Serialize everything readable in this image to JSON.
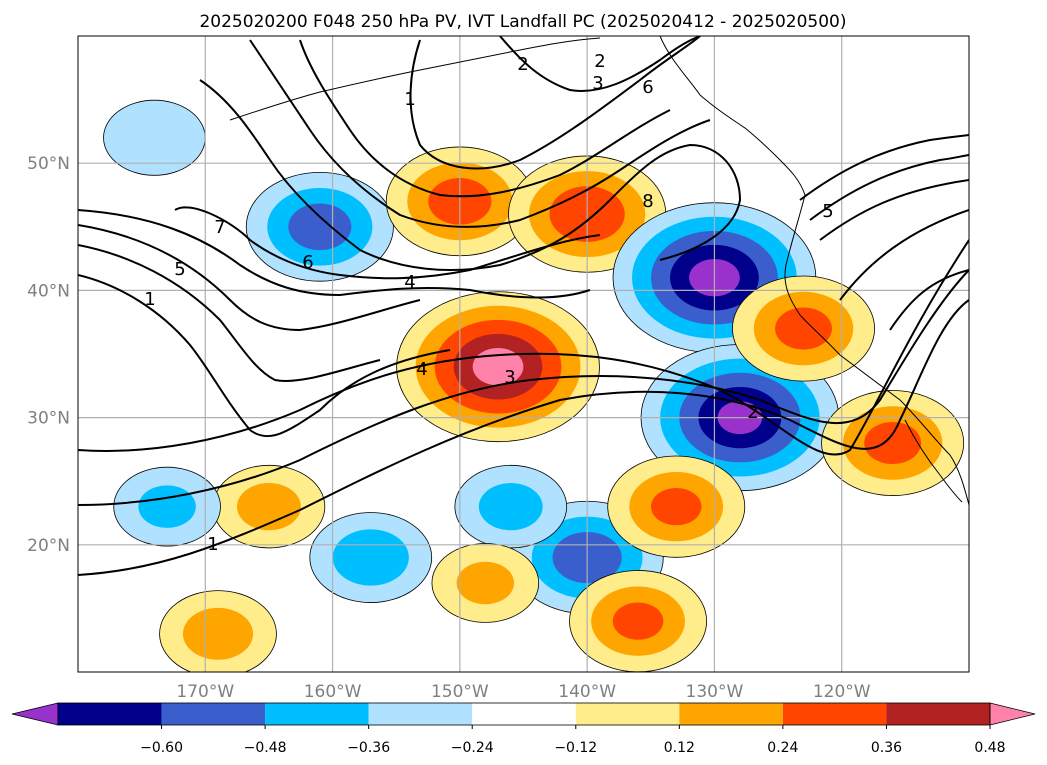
{
  "chart_data": {
    "type": "heatmap",
    "title": "2025020200 F048 250 hPa PV, IVT Landfall PC (2025020412 - 2025020500)",
    "x_ticks": [
      "170°W",
      "160°W",
      "150°W",
      "140°W",
      "130°W",
      "120°W"
    ],
    "x_tick_values": [
      -170,
      -160,
      -150,
      -140,
      -130,
      -120
    ],
    "y_ticks": [
      "20°N",
      "30°N",
      "40°N",
      "50°N"
    ],
    "y_tick_values": [
      20,
      30,
      40,
      50
    ],
    "xlim": [
      -180,
      -110
    ],
    "ylim": [
      10,
      60
    ],
    "grid": true,
    "colorbar": {
      "levels": [
        -0.6,
        -0.48,
        -0.36,
        -0.24,
        -0.12,
        0.12,
        0.24,
        0.36,
        0.48,
        0.6
      ],
      "tick_labels": [
        "−0.60",
        "−0.48",
        "−0.36",
        "−0.24",
        "−0.12",
        "0.12",
        "0.24",
        "0.36",
        "0.48",
        "0.60"
      ],
      "colors": [
        "#9932cc",
        "#00008b",
        "#3a5fcd",
        "#00bfff",
        "#b0e2ff",
        "#ffffff",
        "#ffec8b",
        "#ffa500",
        "#ff4500",
        "#b22222",
        "#ff82ab"
      ],
      "extend": "both"
    },
    "pv_contour_labels": [
      "1",
      "1",
      "1",
      "2",
      "2",
      "2",
      "3",
      "3",
      "4",
      "4",
      "5",
      "5",
      "6",
      "6",
      "7",
      "8"
    ],
    "anomaly_centers": [
      {
        "lon": -161,
        "lat": 45,
        "value": -0.4
      },
      {
        "lon": -150,
        "lat": 47,
        "value": 0.4
      },
      {
        "lon": -140,
        "lat": 46,
        "value": 0.44
      },
      {
        "lon": -130,
        "lat": 41,
        "value": -0.62
      },
      {
        "lon": -128,
        "lat": 30,
        "value": -0.6
      },
      {
        "lon": -147,
        "lat": 34,
        "value": 0.62
      },
      {
        "lon": -123,
        "lat": 37,
        "value": 0.38
      },
      {
        "lon": -116,
        "lat": 28,
        "value": 0.38
      },
      {
        "lon": -140,
        "lat": 19,
        "value": -0.42
      },
      {
        "lon": -157,
        "lat": 19,
        "value": -0.3
      },
      {
        "lon": -146,
        "lat": 23,
        "value": -0.26
      },
      {
        "lon": -133,
        "lat": 23,
        "value": 0.36
      },
      {
        "lon": -136,
        "lat": 14,
        "value": 0.36
      },
      {
        "lon": -165,
        "lat": 23,
        "value": 0.26
      },
      {
        "lon": -173,
        "lat": 23,
        "value": -0.24
      },
      {
        "lon": -148,
        "lat": 17,
        "value": 0.24
      },
      {
        "lon": -169,
        "lat": 13,
        "value": 0.28
      },
      {
        "lon": -174,
        "lat": 52,
        "value": -0.22
      }
    ]
  }
}
